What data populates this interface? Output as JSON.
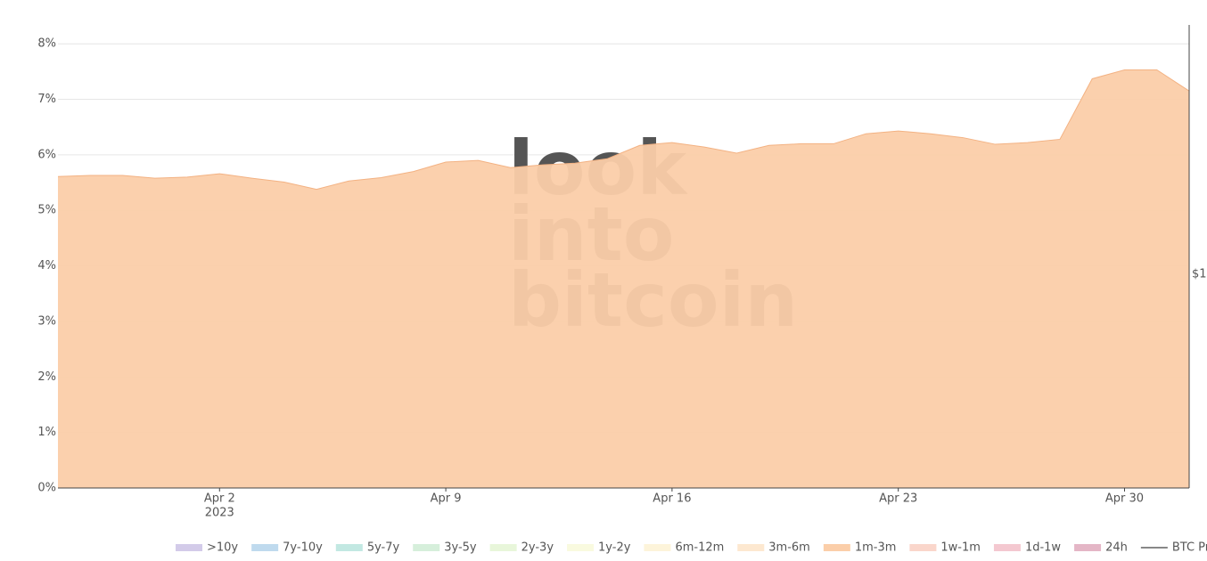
{
  "chart_data": {
    "type": "area",
    "x": [
      "2023-03-28",
      "2023-03-29",
      "2023-03-30",
      "2023-03-31",
      "2023-04-01",
      "2023-04-02",
      "2023-04-03",
      "2023-04-04",
      "2023-04-05",
      "2023-04-06",
      "2023-04-07",
      "2023-04-08",
      "2023-04-09",
      "2023-04-10",
      "2023-04-11",
      "2023-04-12",
      "2023-04-13",
      "2023-04-14",
      "2023-04-15",
      "2023-04-16",
      "2023-04-17",
      "2023-04-18",
      "2023-04-19",
      "2023-04-20",
      "2023-04-21",
      "2023-04-22",
      "2023-04-23",
      "2023-04-24",
      "2023-04-25",
      "2023-04-26",
      "2023-04-27",
      "2023-04-28",
      "2023-04-29",
      "2023-04-30",
      "2023-05-01",
      "2023-05-02"
    ],
    "series": [
      {
        "name": ">10y",
        "color": "#d3cbe9",
        "hidden": true
      },
      {
        "name": "7y-10y",
        "color": "#bfdaee",
        "hidden": true
      },
      {
        "name": "5y-7y",
        "color": "#c2e8e2",
        "hidden": true
      },
      {
        "name": "3y-5y",
        "color": "#d6efdb",
        "hidden": true
      },
      {
        "name": "2y-3y",
        "color": "#e8f6da",
        "hidden": true
      },
      {
        "name": "1y-2y",
        "color": "#f9fadf",
        "hidden": true
      },
      {
        "name": "6m-12m",
        "color": "#fdf4da",
        "hidden": true
      },
      {
        "name": "3m-6m",
        "color": "#fde8d0",
        "hidden": true
      },
      {
        "name": "1m-3m",
        "color": "#fbcea9",
        "hidden": false,
        "values": [
          5.61,
          5.63,
          5.63,
          5.58,
          5.6,
          5.66,
          5.58,
          5.51,
          5.38,
          5.53,
          5.59,
          5.7,
          5.87,
          5.9,
          5.77,
          5.82,
          5.85,
          5.93,
          6.17,
          6.22,
          6.14,
          6.03,
          6.17,
          6.2,
          6.2,
          6.38,
          6.43,
          6.38,
          6.31,
          6.19,
          6.22,
          6.28,
          7.37,
          7.53,
          7.53,
          7.15
        ]
      },
      {
        "name": "1w-1m",
        "color": "#fad6cb",
        "hidden": true
      },
      {
        "name": "1d-1w",
        "color": "#f4c8d0",
        "hidden": true
      },
      {
        "name": "24h",
        "color": "#e4b6c6",
        "hidden": true
      },
      {
        "name": "BTC Price",
        "color": "#888888",
        "hidden": true,
        "line": true
      }
    ],
    "xlim": [
      "2023-03-28",
      "2023-05-02"
    ],
    "xticks": [
      {
        "value": "2023-04-02",
        "label": "Apr 2",
        "sublabel": "2023"
      },
      {
        "value": "2023-04-09",
        "label": "Apr 9"
      },
      {
        "value": "2023-04-16",
        "label": "Apr 16"
      },
      {
        "value": "2023-04-23",
        "label": "Apr 23"
      },
      {
        "value": "2023-04-30",
        "label": "Apr 30"
      }
    ],
    "ylim": [
      0,
      8.34
    ],
    "yticks": [
      {
        "value": 0,
        "label": "0%"
      },
      {
        "value": 1,
        "label": "1%"
      },
      {
        "value": 2,
        "label": "2%"
      },
      {
        "value": 3,
        "label": "3%"
      },
      {
        "value": 4,
        "label": "4%"
      },
      {
        "value": 5,
        "label": "5%"
      },
      {
        "value": 6,
        "label": "6%"
      },
      {
        "value": 7,
        "label": "7%"
      },
      {
        "value": 8,
        "label": "8%"
      }
    ],
    "y2_label": "$1",
    "watermark": [
      "look",
      "into",
      "bitcoin"
    ],
    "grid": true
  }
}
